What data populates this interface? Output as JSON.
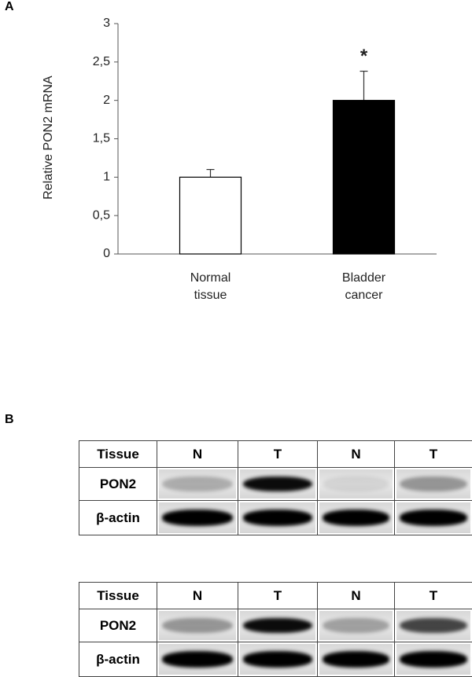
{
  "panel_labels": [
    "A",
    "B"
  ],
  "chart_data": {
    "type": "bar",
    "ylabel": "Relative PON2 mRNA",
    "categories": [
      "Normal tissue",
      "Bladder cancer"
    ],
    "values": [
      1,
      2
    ],
    "errors": [
      0.1,
      0.38
    ],
    "colors": [
      "#ffffff",
      "#000000"
    ],
    "edgecolor": "#000000",
    "annotation": "*",
    "ylim": [
      0,
      3
    ],
    "yticks": [
      0,
      {
        "value": 0.5,
        "label": "0,5"
      },
      1,
      {
        "value": 1.5,
        "label": "1,5"
      },
      2,
      {
        "value": 2.5,
        "label": "2,5"
      },
      3
    ],
    "grid": false
  },
  "blots": [
    {
      "columns": [
        "Tissue",
        "N",
        "T",
        "N",
        "T"
      ],
      "rows": [
        "PON2",
        "β-actin"
      ]
    },
    {
      "columns": [
        "Tissue",
        "N",
        "T",
        "N",
        "T"
      ],
      "rows": [
        "PON2",
        "β-actin"
      ]
    }
  ]
}
